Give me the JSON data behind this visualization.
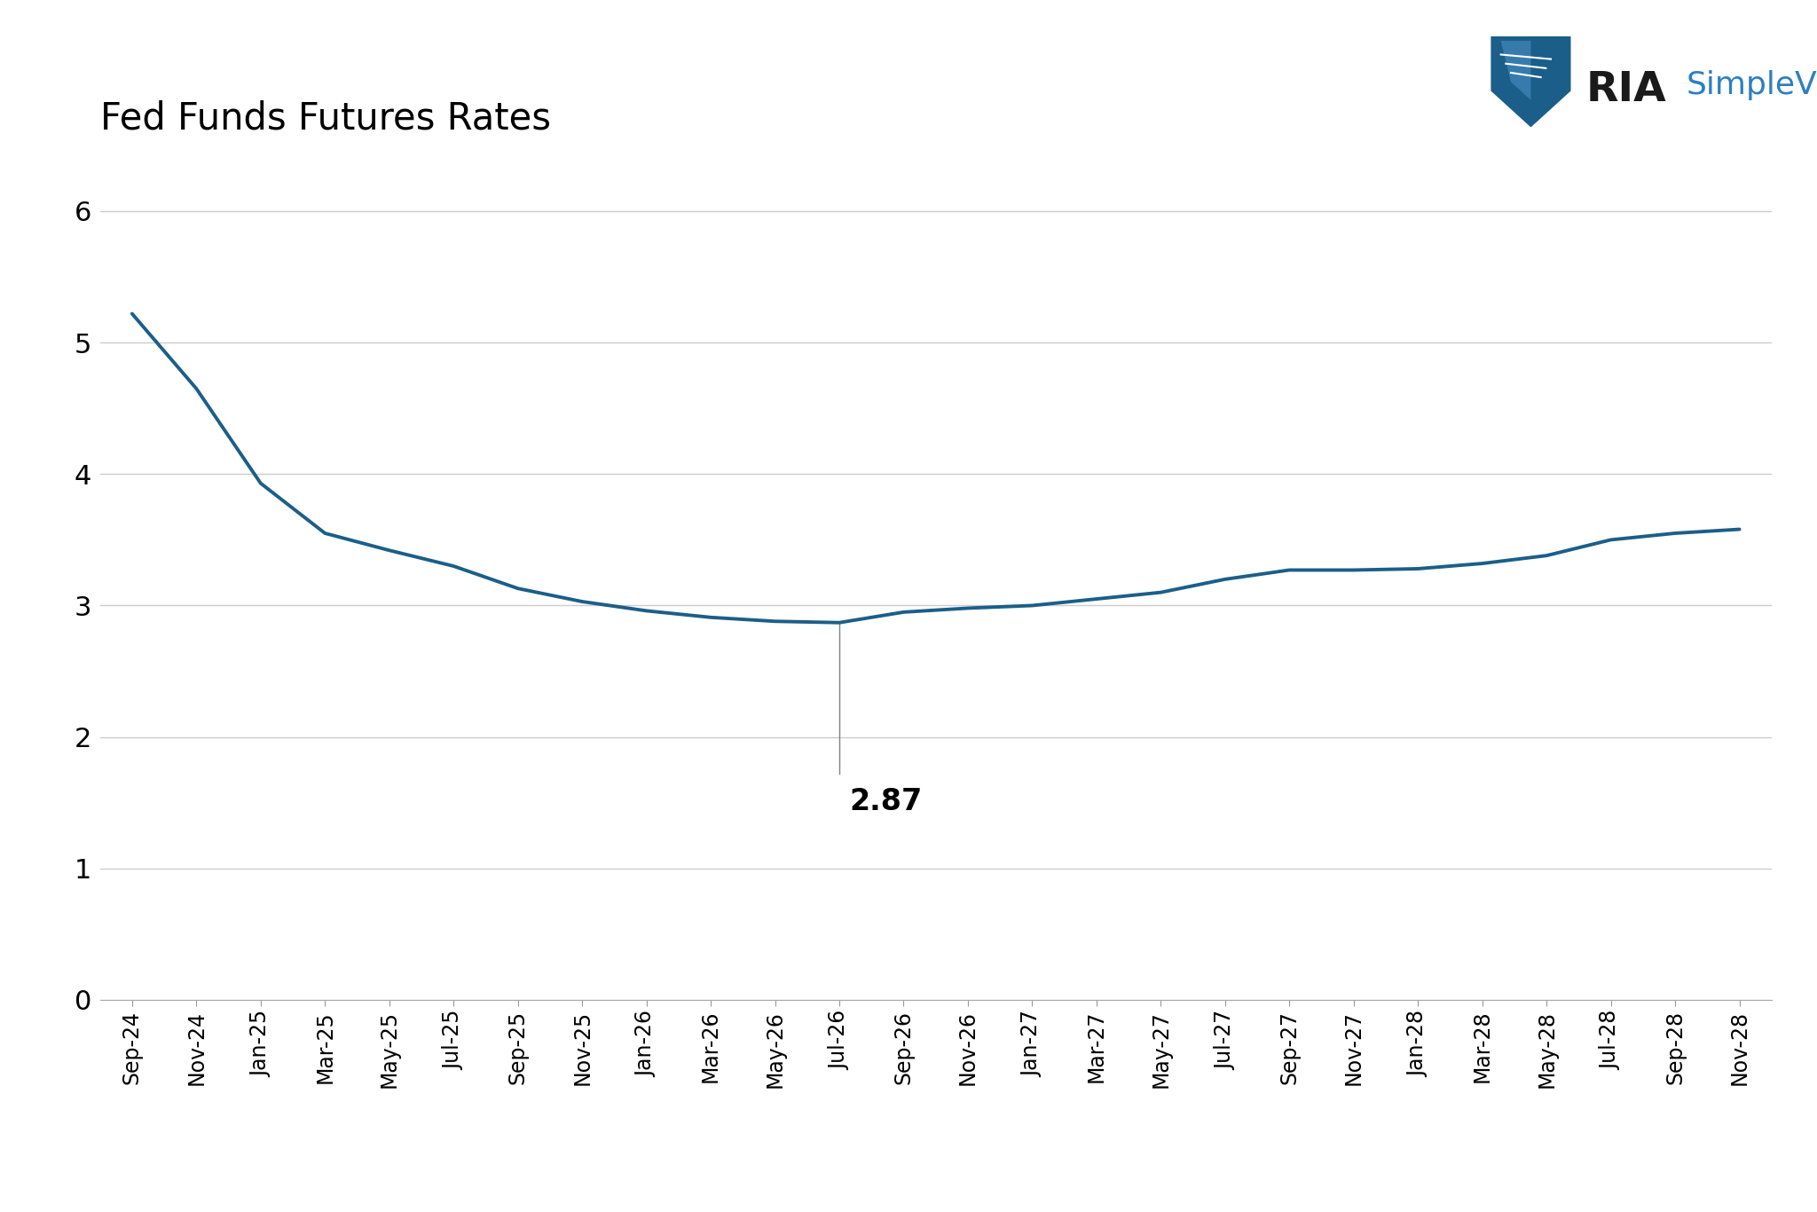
{
  "title": "Fed Funds Futures Rates",
  "title_fontsize": 30,
  "line_color": "#1b5e8a",
  "background_color": "#ffffff",
  "grid_color": "#cccccc",
  "ylim": [
    0,
    6.5
  ],
  "yticks": [
    0,
    1,
    2,
    3,
    4,
    5,
    6
  ],
  "annotation_value": "2.87",
  "annotation_fontsize": 24,
  "x_labels": [
    "Sep-24",
    "Nov-24",
    "Jan-25",
    "Mar-25",
    "May-25",
    "Jul-25",
    "Sep-25",
    "Nov-25",
    "Jan-26",
    "Mar-26",
    "May-26",
    "Jul-26",
    "Sep-26",
    "Nov-26",
    "Jan-27",
    "Mar-27",
    "May-27",
    "Jul-27",
    "Sep-27",
    "Nov-27",
    "Jan-28",
    "Mar-28",
    "May-28",
    "Jul-28",
    "Sep-28",
    "Nov-28"
  ],
  "y_values": [
    5.22,
    4.65,
    3.93,
    3.55,
    3.42,
    3.3,
    3.13,
    3.03,
    2.96,
    2.91,
    2.88,
    2.87,
    2.95,
    2.98,
    3.0,
    3.05,
    3.1,
    3.2,
    3.27,
    3.27,
    3.28,
    3.32,
    3.38,
    3.5,
    3.55,
    3.58
  ],
  "min_point_index": 11,
  "line_width": 2.8,
  "ria_color": "#1a1a1a",
  "simplevisor_color": "#2e7fc1",
  "logo_shield_color": "#1b5e8a"
}
